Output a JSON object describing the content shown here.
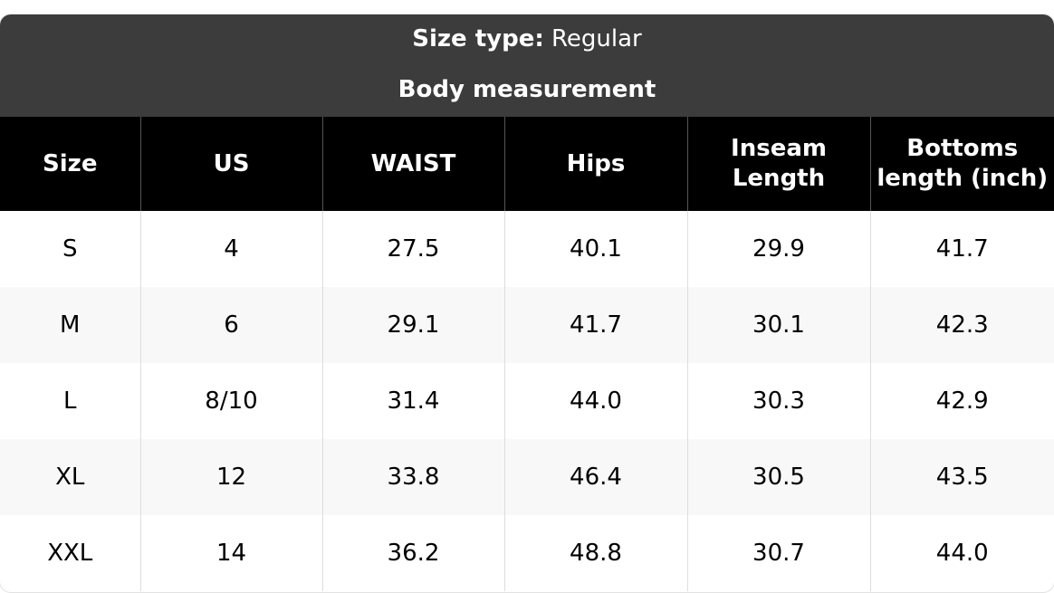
{
  "header": {
    "size_type_label": "Size type:",
    "size_type_value": "Regular",
    "subtitle": "Body measurement"
  },
  "table": {
    "columns": [
      "Size",
      "US",
      "WAIST",
      "Hips",
      "Inseam Length",
      "Bottoms length (inch)"
    ],
    "rows": [
      [
        "S",
        "4",
        "27.5",
        "40.1",
        "29.9",
        "41.7"
      ],
      [
        "M",
        "6",
        "29.1",
        "41.7",
        "30.1",
        "42.3"
      ],
      [
        "L",
        "8/10",
        "31.4",
        "44.0",
        "30.3",
        "42.9"
      ],
      [
        "XL",
        "12",
        "33.8",
        "46.4",
        "30.5",
        "43.5"
      ],
      [
        "XXL",
        "14",
        "36.2",
        "48.8",
        "30.7",
        "44.0"
      ]
    ]
  }
}
